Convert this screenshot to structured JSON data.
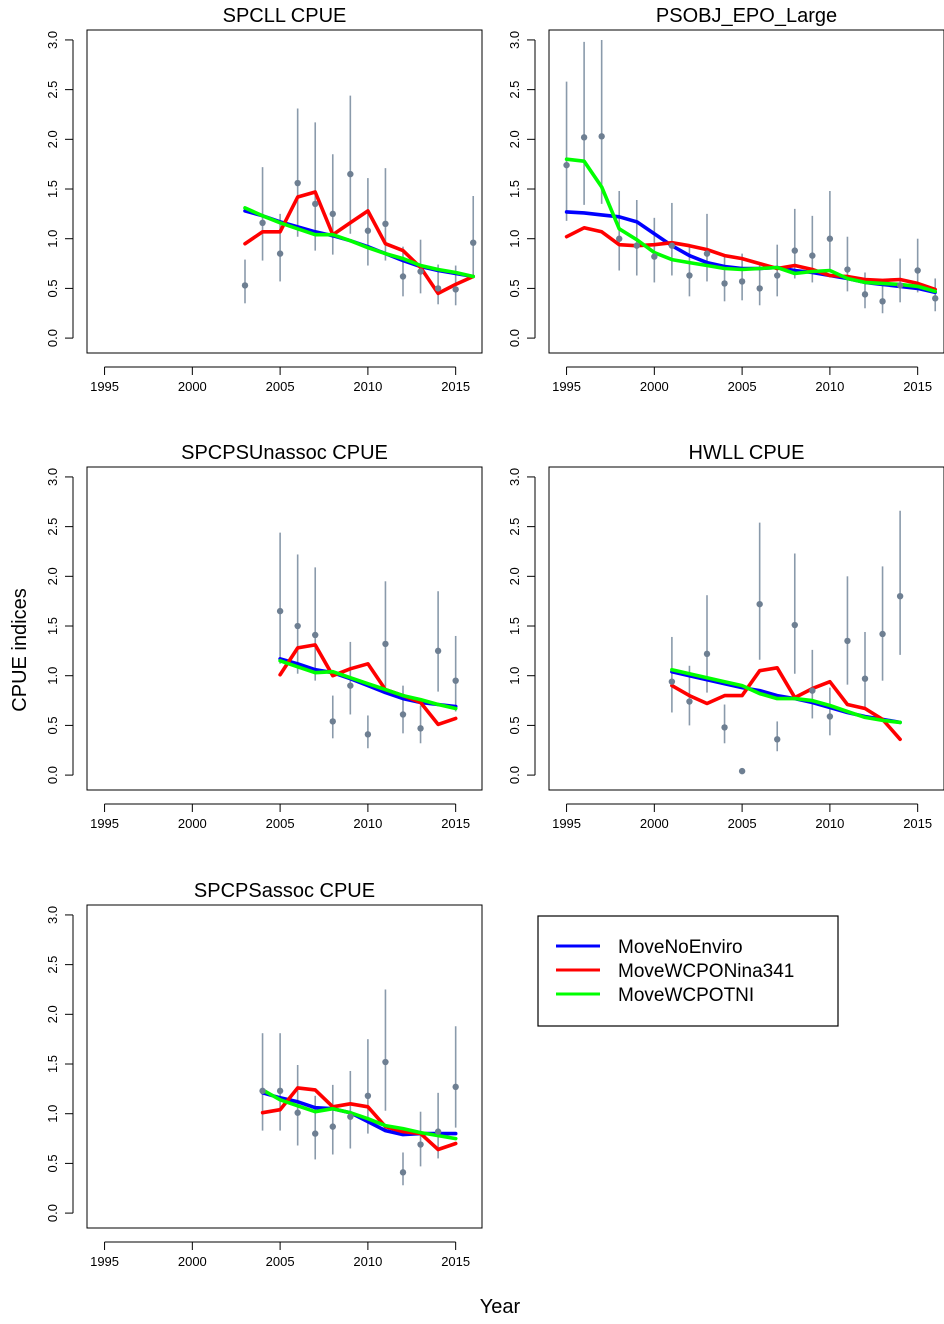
{
  "figure": {
    "ylabel": "CPUE indices",
    "xlabel": "Year"
  },
  "legend": {
    "entries": [
      {
        "name": "MoveNoEnviro",
        "color": "#0000ff"
      },
      {
        "name": "MoveWCPONina341",
        "color": "#ff0000"
      },
      {
        "name": "MoveWCPOTNI",
        "color": "#00ff00"
      }
    ]
  },
  "chart_data": [
    {
      "type": "line",
      "title": "SPCLL CPUE",
      "xlim": [
        1994,
        2016.5
      ],
      "ylim": [
        -0.15,
        3.1
      ],
      "xticks": [
        1995,
        2000,
        2005,
        2010,
        2015
      ],
      "yticks": [
        0.0,
        0.5,
        1.0,
        1.5,
        2.0,
        2.5,
        3.0
      ],
      "observed": {
        "x": [
          2003,
          2004,
          2005,
          2006,
          2007,
          2008,
          2009,
          2010,
          2011,
          2012,
          2013,
          2014,
          2015,
          2016
        ],
        "y": [
          0.53,
          1.16,
          0.85,
          1.56,
          1.35,
          1.25,
          1.65,
          1.08,
          1.15,
          0.62,
          0.67,
          0.5,
          0.49,
          0.96
        ],
        "lower": [
          0.35,
          0.78,
          0.57,
          1.02,
          0.88,
          0.84,
          1.05,
          0.73,
          0.78,
          0.42,
          0.45,
          0.34,
          0.33,
          0.63
        ],
        "upper": [
          0.79,
          1.72,
          1.25,
          2.31,
          2.17,
          1.85,
          2.44,
          1.61,
          1.71,
          0.92,
          0.99,
          0.74,
          0.73,
          1.43
        ]
      },
      "series": [
        {
          "name": "MoveNoEnviro",
          "x": [
            2003,
            2004,
            2005,
            2006,
            2007,
            2008,
            2009,
            2010,
            2011,
            2012,
            2013,
            2014,
            2015,
            2016
          ],
          "y": [
            1.28,
            1.23,
            1.17,
            1.12,
            1.07,
            1.03,
            0.98,
            0.92,
            0.85,
            0.78,
            0.72,
            0.68,
            0.65,
            0.62
          ]
        },
        {
          "name": "MoveWCPONina341",
          "x": [
            2003,
            2004,
            2005,
            2006,
            2007,
            2008,
            2009,
            2010,
            2011,
            2012,
            2013,
            2014,
            2015,
            2016
          ],
          "y": [
            0.95,
            1.07,
            1.07,
            1.42,
            1.47,
            1.04,
            1.16,
            1.28,
            0.95,
            0.88,
            0.71,
            0.45,
            0.54,
            0.62
          ]
        },
        {
          "name": "MoveWCPOTNI",
          "x": [
            2003,
            2004,
            2005,
            2006,
            2007,
            2008,
            2009,
            2010,
            2011,
            2012,
            2013,
            2014,
            2015,
            2016
          ],
          "y": [
            1.31,
            1.23,
            1.16,
            1.1,
            1.04,
            1.04,
            0.98,
            0.91,
            0.85,
            0.8,
            0.73,
            0.69,
            0.66,
            0.62
          ]
        }
      ]
    },
    {
      "type": "line",
      "title": "PSOBJ_EPO_Large",
      "xlim": [
        1994,
        2016.5
      ],
      "ylim": [
        -0.15,
        3.1
      ],
      "xticks": [
        1995,
        2000,
        2005,
        2010,
        2015
      ],
      "yticks": [
        0.0,
        0.5,
        1.0,
        1.5,
        2.0,
        2.5,
        3.0
      ],
      "observed": {
        "x": [
          1995,
          1996,
          1997,
          1998,
          1999,
          2000,
          2001,
          2002,
          2003,
          2004,
          2005,
          2006,
          2007,
          2008,
          2009,
          2010,
          2011,
          2012,
          2013,
          2014,
          2015,
          2016
        ],
        "y": [
          1.74,
          2.02,
          2.03,
          1.0,
          0.93,
          0.82,
          0.93,
          0.63,
          0.85,
          0.55,
          0.57,
          0.5,
          0.63,
          0.88,
          0.83,
          1.0,
          0.69,
          0.44,
          0.37,
          0.53,
          0.68,
          0.4
        ],
        "lower": [
          1.18,
          1.34,
          1.35,
          0.68,
          0.63,
          0.56,
          0.63,
          0.42,
          0.57,
          0.37,
          0.38,
          0.33,
          0.42,
          0.6,
          0.56,
          0.68,
          0.47,
          0.3,
          0.25,
          0.36,
          0.46,
          0.27
        ],
        "upper": [
          2.58,
          2.98,
          3.0,
          1.48,
          1.39,
          1.21,
          1.36,
          0.94,
          1.25,
          0.82,
          0.85,
          0.75,
          0.94,
          1.3,
          1.23,
          1.48,
          1.02,
          0.66,
          0.55,
          0.8,
          1.0,
          0.6
        ]
      },
      "series": [
        {
          "name": "MoveNoEnviro",
          "x": [
            1995,
            1996,
            1997,
            1998,
            1999,
            2000,
            2001,
            2002,
            2003,
            2004,
            2005,
            2006,
            2007,
            2008,
            2009,
            2010,
            2011,
            2012,
            2013,
            2014,
            2015,
            2016
          ],
          "y": [
            1.27,
            1.26,
            1.24,
            1.22,
            1.17,
            1.05,
            0.93,
            0.83,
            0.76,
            0.72,
            0.7,
            0.7,
            0.71,
            0.68,
            0.66,
            0.63,
            0.6,
            0.56,
            0.54,
            0.52,
            0.5,
            0.46
          ]
        },
        {
          "name": "MoveWCPONina341",
          "x": [
            1995,
            1996,
            1997,
            1998,
            1999,
            2000,
            2001,
            2002,
            2003,
            2004,
            2005,
            2006,
            2007,
            2008,
            2009,
            2010,
            2011,
            2012,
            2013,
            2014,
            2015,
            2016
          ],
          "y": [
            1.02,
            1.11,
            1.07,
            0.94,
            0.93,
            0.94,
            0.96,
            0.93,
            0.89,
            0.83,
            0.8,
            0.75,
            0.7,
            0.73,
            0.69,
            0.63,
            0.62,
            0.59,
            0.58,
            0.59,
            0.55,
            0.49
          ]
        },
        {
          "name": "MoveWCPOTNI",
          "x": [
            1995,
            1996,
            1997,
            1998,
            1999,
            2000,
            2001,
            2002,
            2003,
            2004,
            2005,
            2006,
            2007,
            2008,
            2009,
            2010,
            2011,
            2012,
            2013,
            2014,
            2015,
            2016
          ],
          "y": [
            1.8,
            1.78,
            1.52,
            1.1,
            0.99,
            0.86,
            0.79,
            0.76,
            0.73,
            0.7,
            0.69,
            0.7,
            0.71,
            0.65,
            0.67,
            0.68,
            0.6,
            0.56,
            0.55,
            0.54,
            0.52,
            0.47
          ]
        }
      ]
    },
    {
      "type": "line",
      "title": "SPCPSUnassoc CPUE",
      "xlim": [
        1994,
        2016.5
      ],
      "ylim": [
        -0.15,
        3.1
      ],
      "xticks": [
        1995,
        2000,
        2005,
        2010,
        2015
      ],
      "yticks": [
        0.0,
        0.5,
        1.0,
        1.5,
        2.0,
        2.5,
        3.0
      ],
      "observed": {
        "x": [
          2005,
          2006,
          2007,
          2008,
          2009,
          2010,
          2011,
          2012,
          2013,
          2014,
          2015
        ],
        "y": [
          1.65,
          1.5,
          1.41,
          0.54,
          0.9,
          0.41,
          1.32,
          0.61,
          0.47,
          1.25,
          0.95
        ],
        "lower": [
          1.12,
          1.02,
          0.95,
          0.37,
          0.61,
          0.27,
          0.89,
          0.42,
          0.32,
          0.84,
          0.64
        ],
        "upper": [
          2.44,
          2.22,
          2.09,
          0.8,
          1.34,
          0.6,
          1.95,
          0.9,
          0.7,
          1.85,
          1.4
        ]
      },
      "series": [
        {
          "name": "MoveNoEnviro",
          "x": [
            2005,
            2006,
            2007,
            2008,
            2009,
            2010,
            2011,
            2012,
            2013,
            2014,
            2015
          ],
          "y": [
            1.17,
            1.12,
            1.06,
            1.03,
            0.97,
            0.9,
            0.83,
            0.77,
            0.73,
            0.71,
            0.69
          ]
        },
        {
          "name": "MoveWCPONina341",
          "x": [
            2005,
            2006,
            2007,
            2008,
            2009,
            2010,
            2011,
            2012,
            2013,
            2014,
            2015
          ],
          "y": [
            1.01,
            1.28,
            1.31,
            1.0,
            1.07,
            1.12,
            0.86,
            0.8,
            0.73,
            0.51,
            0.57
          ]
        },
        {
          "name": "MoveWCPOTNI",
          "x": [
            2005,
            2006,
            2007,
            2008,
            2009,
            2010,
            2011,
            2012,
            2013,
            2014,
            2015
          ],
          "y": [
            1.15,
            1.09,
            1.03,
            1.04,
            0.98,
            0.92,
            0.86,
            0.8,
            0.76,
            0.71,
            0.67
          ]
        }
      ]
    },
    {
      "type": "line",
      "title": "HWLL CPUE",
      "xlim": [
        1994,
        2016.5
      ],
      "ylim": [
        -0.15,
        3.1
      ],
      "xticks": [
        1995,
        2000,
        2005,
        2010,
        2015
      ],
      "yticks": [
        0.0,
        0.5,
        1.0,
        1.5,
        2.0,
        2.5,
        3.0
      ],
      "observed": {
        "x": [
          2001,
          2002,
          2003,
          2004,
          2005,
          2006,
          2007,
          2008,
          2009,
          2010,
          2011,
          2012,
          2013,
          2014
        ],
        "y": [
          0.94,
          0.74,
          1.22,
          0.48,
          0.04,
          1.72,
          0.36,
          1.51,
          0.85,
          0.59,
          1.35,
          0.97,
          1.42,
          1.8
        ],
        "lower": [
          0.63,
          0.5,
          0.83,
          0.32,
          0.03,
          1.16,
          0.24,
          1.02,
          0.57,
          0.4,
          0.91,
          0.66,
          0.95,
          1.21
        ],
        "upper": [
          1.39,
          1.1,
          1.81,
          0.71,
          0.06,
          2.54,
          0.54,
          2.23,
          1.26,
          0.88,
          2.0,
          1.44,
          2.1,
          2.66
        ]
      },
      "series": [
        {
          "name": "MoveNoEnviro",
          "x": [
            2001,
            2002,
            2003,
            2004,
            2005,
            2006,
            2007,
            2008,
            2009,
            2010,
            2011,
            2012,
            2013,
            2014
          ],
          "y": [
            1.04,
            1.0,
            0.96,
            0.92,
            0.88,
            0.85,
            0.8,
            0.77,
            0.73,
            0.68,
            0.63,
            0.59,
            0.56,
            0.53
          ]
        },
        {
          "name": "MoveWCPONina341",
          "x": [
            2001,
            2002,
            2003,
            2004,
            2005,
            2006,
            2007,
            2008,
            2009,
            2010,
            2011,
            2012,
            2013,
            2014
          ],
          "y": [
            0.9,
            0.8,
            0.72,
            0.8,
            0.8,
            1.05,
            1.08,
            0.78,
            0.87,
            0.94,
            0.71,
            0.67,
            0.56,
            0.36
          ]
        },
        {
          "name": "MoveWCPOTNI",
          "x": [
            2001,
            2002,
            2003,
            2004,
            2005,
            2006,
            2007,
            2008,
            2009,
            2010,
            2011,
            2012,
            2013,
            2014
          ],
          "y": [
            1.06,
            1.02,
            0.98,
            0.94,
            0.9,
            0.82,
            0.77,
            0.77,
            0.75,
            0.7,
            0.64,
            0.58,
            0.55,
            0.53
          ]
        }
      ]
    },
    {
      "type": "line",
      "title": "SPCPSassoc CPUE",
      "xlim": [
        1994,
        2016.5
      ],
      "ylim": [
        -0.15,
        3.1
      ],
      "xticks": [
        1995,
        2000,
        2005,
        2010,
        2015
      ],
      "yticks": [
        0.0,
        0.5,
        1.0,
        1.5,
        2.0,
        2.5,
        3.0
      ],
      "observed": {
        "x": [
          2004,
          2005,
          2006,
          2007,
          2008,
          2009,
          2010,
          2011,
          2012,
          2013,
          2014,
          2015
        ],
        "y": [
          1.23,
          1.23,
          1.01,
          0.8,
          0.87,
          0.97,
          1.18,
          1.52,
          0.41,
          0.69,
          0.82,
          1.27
        ],
        "lower": [
          0.83,
          0.83,
          0.68,
          0.54,
          0.59,
          0.65,
          0.8,
          1.03,
          0.28,
          0.47,
          0.55,
          0.86
        ],
        "upper": [
          1.81,
          1.81,
          1.49,
          1.18,
          1.29,
          1.43,
          1.75,
          2.25,
          0.61,
          1.02,
          1.21,
          1.88
        ]
      },
      "series": [
        {
          "name": "MoveNoEnviro",
          "x": [
            2004,
            2005,
            2006,
            2007,
            2008,
            2009,
            2010,
            2011,
            2012,
            2013,
            2014,
            2015
          ],
          "y": [
            1.21,
            1.16,
            1.12,
            1.06,
            1.05,
            1.01,
            0.92,
            0.83,
            0.79,
            0.8,
            0.8,
            0.8
          ]
        },
        {
          "name": "MoveWCPONina341",
          "x": [
            2004,
            2005,
            2006,
            2007,
            2008,
            2009,
            2010,
            2011,
            2012,
            2013,
            2014,
            2015
          ],
          "y": [
            1.01,
            1.04,
            1.26,
            1.24,
            1.07,
            1.1,
            1.07,
            0.87,
            0.82,
            0.8,
            0.64,
            0.7
          ]
        },
        {
          "name": "MoveWCPOTNI",
          "x": [
            2004,
            2005,
            2006,
            2007,
            2008,
            2009,
            2010,
            2011,
            2012,
            2013,
            2014,
            2015
          ],
          "y": [
            1.24,
            1.14,
            1.08,
            1.02,
            1.05,
            1.01,
            0.95,
            0.88,
            0.85,
            0.81,
            0.78,
            0.75
          ]
        }
      ]
    }
  ]
}
